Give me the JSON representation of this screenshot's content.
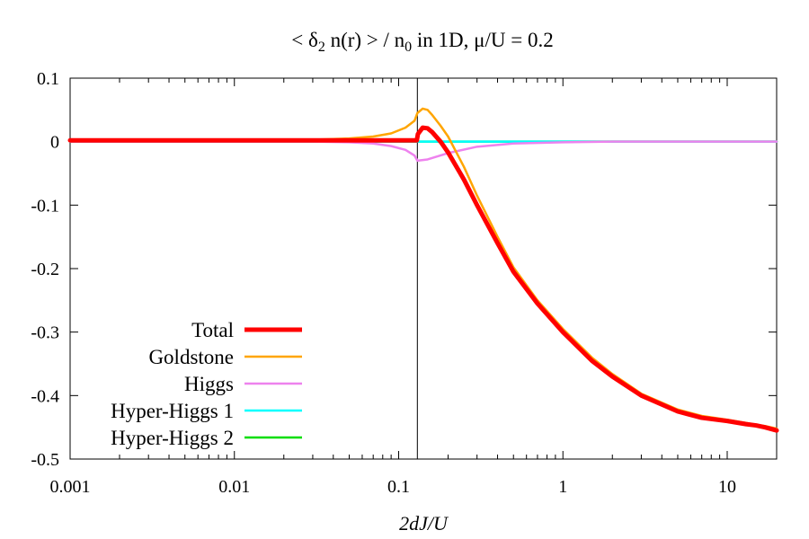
{
  "chart_data": {
    "type": "line",
    "title": {
      "prefix": "< ",
      "delta": "δ",
      "delta_sub": "2",
      "middle": " n(r) > / n",
      "n_sub": "0",
      "suffix": " in 1D, μ/U = 0.2"
    },
    "xlabel": "2dJ/U",
    "ylabel": "",
    "xscale": "log",
    "xlim": [
      0.001,
      20
    ],
    "ylim": [
      -0.5,
      0.1
    ],
    "x_ticks": [
      {
        "value": 0.001,
        "label": "0.001"
      },
      {
        "value": 0.01,
        "label": "0.01"
      },
      {
        "value": 0.1,
        "label": "0.1"
      },
      {
        "value": 1,
        "label": "1"
      },
      {
        "value": 10,
        "label": "10"
      }
    ],
    "y_ticks": [
      {
        "value": 0.1,
        "label": "0.1"
      },
      {
        "value": 0,
        "label": "0"
      },
      {
        "value": -0.1,
        "label": "-0.1"
      },
      {
        "value": -0.2,
        "label": "-0.2"
      },
      {
        "value": -0.3,
        "label": "-0.3"
      },
      {
        "value": -0.4,
        "label": "-0.4"
      },
      {
        "value": -0.5,
        "label": "-0.5"
      }
    ],
    "vline_x": 0.13,
    "legend_position": "bottom-left",
    "series": [
      {
        "name": "Total",
        "color": "#ff0000",
        "x": [
          0.001,
          0.01,
          0.1,
          0.129,
          0.131,
          0.14,
          0.15,
          0.16,
          0.18,
          0.2,
          0.25,
          0.3,
          0.4,
          0.5,
          0.7,
          1.0,
          1.5,
          2.0,
          3.0,
          5.0,
          7.0,
          10.0,
          13.0,
          15.0,
          17.0,
          20.0
        ],
        "values": [
          0.002,
          0.002,
          0.002,
          0.002,
          0.012,
          0.022,
          0.021,
          0.015,
          0.0,
          -0.017,
          -0.06,
          -0.1,
          -0.16,
          -0.205,
          -0.255,
          -0.3,
          -0.345,
          -0.37,
          -0.4,
          -0.425,
          -0.435,
          -0.44,
          -0.445,
          -0.447,
          -0.45,
          -0.455
        ]
      },
      {
        "name": "Goldstone",
        "color": "#ffa500",
        "x": [
          0.001,
          0.01,
          0.03,
          0.05,
          0.07,
          0.09,
          0.11,
          0.125,
          0.13,
          0.14,
          0.15,
          0.16,
          0.18,
          0.2,
          0.25,
          0.3,
          0.4,
          0.5,
          0.7,
          1.0,
          1.5,
          2.0,
          3.0,
          5.0,
          7.0,
          10.0,
          13.0,
          15.0,
          17.0,
          20.0
        ],
        "values": [
          0.002,
          0.002,
          0.003,
          0.005,
          0.008,
          0.013,
          0.022,
          0.033,
          0.045,
          0.052,
          0.05,
          0.042,
          0.025,
          0.008,
          -0.04,
          -0.085,
          -0.15,
          -0.198,
          -0.25,
          -0.295,
          -0.34,
          -0.366,
          -0.397,
          -0.422,
          -0.432,
          -0.438,
          -0.443,
          -0.446,
          -0.448,
          -0.452
        ]
      },
      {
        "name": "Higgs",
        "color": "#ee82ee",
        "x": [
          0.001,
          0.01,
          0.03,
          0.05,
          0.07,
          0.09,
          0.11,
          0.125,
          0.13,
          0.15,
          0.2,
          0.3,
          0.5,
          1.0,
          2.0,
          5.0,
          10.0,
          20.0
        ],
        "values": [
          0.0,
          0.0,
          0.0,
          -0.001,
          -0.003,
          -0.007,
          -0.013,
          -0.022,
          -0.03,
          -0.028,
          -0.018,
          -0.008,
          -0.003,
          -0.001,
          0.0,
          0.0,
          0.0,
          0.0
        ]
      },
      {
        "name": "Hyper-Higgs 1",
        "color": "#00ffff",
        "x": [
          0.001,
          20.0
        ],
        "values": [
          0.0,
          0.0
        ]
      },
      {
        "name": "Hyper-Higgs 2",
        "color": "#00dd00",
        "x": [
          0.001,
          0.13,
          0.131,
          20.0
        ],
        "values": [
          0.0,
          0.0,
          0.0,
          0.0
        ]
      }
    ]
  }
}
